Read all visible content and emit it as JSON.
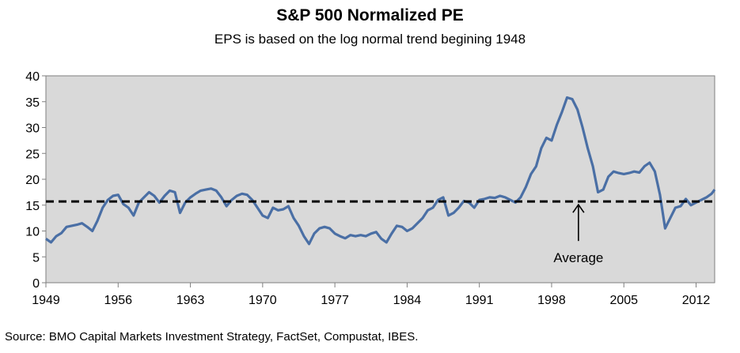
{
  "header": {
    "title": "S&P 500 Normalized PE",
    "subtitle": "EPS is based on the log normal trend begining 1948"
  },
  "footer": {
    "source": "Source: BMO Capital Markets Investment Strategy, FactSet, Compustat, IBES."
  },
  "colors": {
    "plot_background": "#d9d9d9",
    "series_line": "#4a6fa5",
    "average_line": "#000000"
  },
  "chart_data": {
    "type": "line",
    "title": "S&P 500 Normalized PE",
    "subtitle": "EPS is based on the log normal trend begining 1948",
    "xlabel": "",
    "ylabel": "",
    "xlim": [
      1949,
      2013.8
    ],
    "ylim": [
      0,
      40
    ],
    "x_ticks": [
      1949,
      1956,
      1963,
      1970,
      1977,
      1984,
      1991,
      1998,
      2005,
      2012
    ],
    "y_ticks": [
      0,
      5,
      10,
      15,
      20,
      25,
      30,
      35,
      40
    ],
    "grid": false,
    "legend": "none",
    "series": [
      {
        "x": [
          1949.0,
          1949.5,
          1950.0,
          1950.5,
          1951.0,
          1951.5,
          1952.0,
          1952.5,
          1953.0,
          1953.5,
          1954.0,
          1954.5,
          1955.0,
          1955.5,
          1956.0,
          1956.5,
          1957.0,
          1957.5,
          1958.0,
          1958.5,
          1959.0,
          1959.5,
          1960.0,
          1960.5,
          1961.0,
          1961.5,
          1962.0,
          1962.5,
          1963.0,
          1963.5,
          1964.0,
          1964.5,
          1965.0,
          1965.5,
          1966.0,
          1966.5,
          1967.0,
          1967.5,
          1968.0,
          1968.5,
          1969.0,
          1969.5,
          1970.0,
          1970.5,
          1971.0,
          1971.5,
          1972.0,
          1972.5,
          1973.0,
          1973.5,
          1974.0,
          1974.5,
          1975.0,
          1975.5,
          1976.0,
          1976.5,
          1977.0,
          1977.5,
          1978.0,
          1978.5,
          1979.0,
          1979.5,
          1980.0,
          1980.5,
          1981.0,
          1981.5,
          1982.0,
          1982.5,
          1983.0,
          1983.5,
          1984.0,
          1984.5,
          1985.0,
          1985.5,
          1986.0,
          1986.5,
          1987.0,
          1987.5,
          1988.0,
          1988.5,
          1989.0,
          1989.5,
          1990.0,
          1990.5,
          1991.0,
          1991.5,
          1992.0,
          1992.5,
          1993.0,
          1993.5,
          1994.0,
          1994.5,
          1995.0,
          1995.5,
          1996.0,
          1996.5,
          1997.0,
          1997.5,
          1998.0,
          1998.5,
          1999.0,
          1999.5,
          2000.0,
          2000.5,
          2001.0,
          2001.5,
          2002.0,
          2002.5,
          2003.0,
          2003.5,
          2004.0,
          2004.5,
          2005.0,
          2005.5,
          2006.0,
          2006.5,
          2007.0,
          2007.5,
          2008.0,
          2008.5,
          2009.0,
          2009.5,
          2010.0,
          2010.5,
          2011.0,
          2011.5,
          2012.0,
          2012.5,
          2013.0,
          2013.5,
          2013.8
        ],
        "values": [
          8.5,
          7.8,
          9.0,
          9.6,
          10.8,
          11.0,
          11.2,
          11.5,
          10.8,
          10.0,
          12.0,
          14.5,
          16.0,
          16.8,
          17.0,
          15.2,
          14.5,
          13.0,
          15.5,
          16.5,
          17.5,
          16.8,
          15.5,
          16.8,
          17.8,
          17.5,
          13.5,
          15.5,
          16.5,
          17.2,
          17.8,
          18.0,
          18.2,
          17.8,
          16.5,
          14.8,
          16.0,
          16.8,
          17.2,
          17.0,
          16.0,
          14.5,
          13.0,
          12.5,
          14.5,
          14.0,
          14.2,
          14.8,
          12.5,
          11.0,
          9.0,
          7.5,
          9.5,
          10.5,
          10.8,
          10.5,
          9.5,
          9.0,
          8.6,
          9.2,
          9.0,
          9.2,
          9.0,
          9.5,
          9.8,
          8.5,
          7.8,
          9.5,
          11.0,
          10.8,
          10.0,
          10.5,
          11.5,
          12.5,
          14.0,
          14.5,
          16.0,
          16.5,
          13.0,
          13.5,
          14.5,
          15.8,
          15.5,
          14.5,
          16.0,
          16.2,
          16.5,
          16.4,
          16.8,
          16.5,
          16.0,
          15.5,
          16.5,
          18.5,
          21.0,
          22.5,
          26.0,
          28.0,
          27.5,
          30.5,
          33.0,
          35.8,
          35.5,
          33.5,
          30.0,
          26.0,
          22.5,
          17.5,
          18.0,
          20.5,
          21.5,
          21.2,
          21.0,
          21.2,
          21.5,
          21.3,
          22.5,
          23.2,
          21.5,
          17.0,
          10.5,
          12.5,
          14.5,
          14.8,
          16.2,
          15.0,
          15.5,
          16.0,
          16.5,
          17.2,
          18.0
        ]
      }
    ],
    "reference_line": {
      "label": "Average",
      "value": 15.7
    }
  }
}
